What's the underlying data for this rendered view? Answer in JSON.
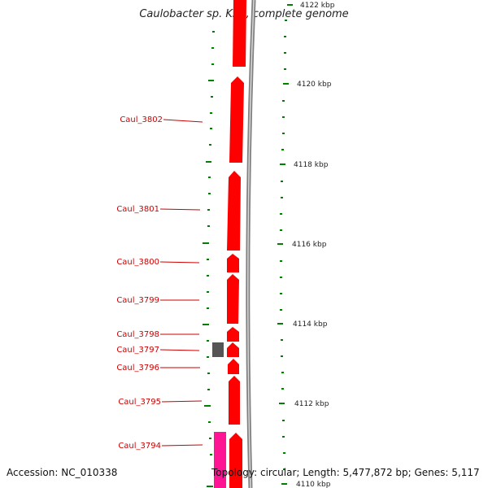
{
  "title": "Caulobacter sp. K31, complete genome",
  "accession": "Accession: NC_010338",
  "topology": "Topology: circular; Length: 5,477,872 bp; Genes: 5,117",
  "colors": {
    "gene_red": "#ff0000",
    "gene_pink": "#ff1493",
    "gene_gray": "#555555",
    "tick_green": "#008000",
    "label_red": "#cc0000",
    "backbone": "#808080"
  },
  "scale_labels": [
    "4122 kbp",
    "4120 kbp",
    "4118 kbp",
    "4116 kbp",
    "4114 kbp",
    "4112 kbp",
    "4110 kbp"
  ],
  "genes": [
    "Caul_3802",
    "Caul_3801",
    "Caul_3800",
    "Caul_3799",
    "Caul_3798",
    "Caul_3797",
    "Caul_3796",
    "Caul_3795",
    "Caul_3794"
  ]
}
